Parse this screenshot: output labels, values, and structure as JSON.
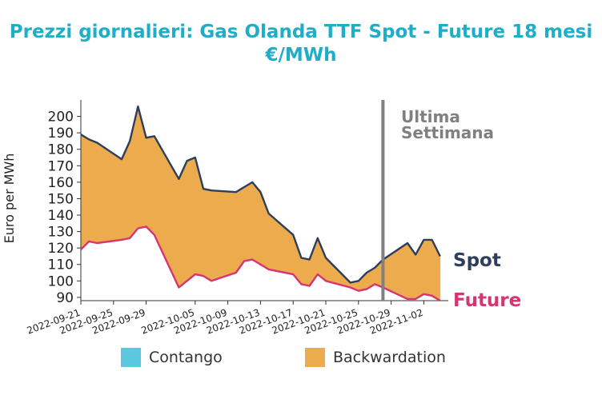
{
  "chart_data": {
    "type": "area",
    "title_line1": "Prezzi giornalieri: Gas Olanda TTF Spot - Future 18 mesi",
    "title_line2": "€/MWh",
    "ylabel": "Euro per MWh",
    "ylim": [
      88,
      210
    ],
    "yticks": [
      90,
      100,
      110,
      120,
      130,
      140,
      150,
      160,
      170,
      180,
      190,
      200
    ],
    "xlim": [
      "2022-09-21",
      "2022-11-05"
    ],
    "xtick_labels": [
      "2022-09-21",
      "2022-09-25",
      "2022-09-29",
      "2022-10-05",
      "2022-10-09",
      "2022-10-13",
      "2022-10-17",
      "2022-10-21",
      "2022-10-25",
      "2022-10-29",
      "2022-11-02"
    ],
    "x": [
      "2022-09-21",
      "2022-09-22",
      "2022-09-23",
      "2022-09-26",
      "2022-09-27",
      "2022-09-28",
      "2022-09-29",
      "2022-09-30",
      "2022-10-03",
      "2022-10-04",
      "2022-10-05",
      "2022-10-06",
      "2022-10-07",
      "2022-10-10",
      "2022-10-11",
      "2022-10-12",
      "2022-10-13",
      "2022-10-14",
      "2022-10-17",
      "2022-10-18",
      "2022-10-19",
      "2022-10-20",
      "2022-10-21",
      "2022-10-24",
      "2022-10-25",
      "2022-10-26",
      "2022-10-27",
      "2022-10-28",
      "2022-10-31",
      "2022-11-01",
      "2022-11-02",
      "2022-11-03",
      "2022-11-04"
    ],
    "series": [
      {
        "name": "Spot",
        "color": "#2d3e5e",
        "values": [
          189,
          186,
          184,
          174,
          185,
          206,
          187,
          188,
          162,
          173,
          175,
          156,
          155,
          154,
          157,
          160,
          154,
          141,
          128,
          114,
          113,
          126,
          114,
          99,
          100,
          105,
          108,
          113,
          123,
          116,
          125,
          125,
          115
        ]
      },
      {
        "name": "Future",
        "color": "#d63472",
        "values": [
          119,
          124,
          123,
          125,
          126,
          132,
          133,
          128,
          96,
          100,
          104,
          103,
          100,
          105,
          112,
          113,
          110,
          107,
          104,
          98,
          97,
          104,
          100,
          96,
          94,
          95,
          98,
          96,
          89,
          89,
          92,
          91,
          88
        ]
      }
    ],
    "annotation": {
      "date": "2022-10-28",
      "line1": "Ultima",
      "line2": "Settimana",
      "color": "#808080"
    },
    "legend": {
      "placement": "bottom",
      "entries": [
        {
          "label": "Contango",
          "color": "#5bc8e0"
        },
        {
          "label": "Backwardation",
          "color": "#ecab4d"
        }
      ]
    },
    "end_labels": [
      {
        "label": "Spot",
        "color": "#2d3e5e"
      },
      {
        "label": "Future",
        "color": "#d63472"
      }
    ]
  }
}
